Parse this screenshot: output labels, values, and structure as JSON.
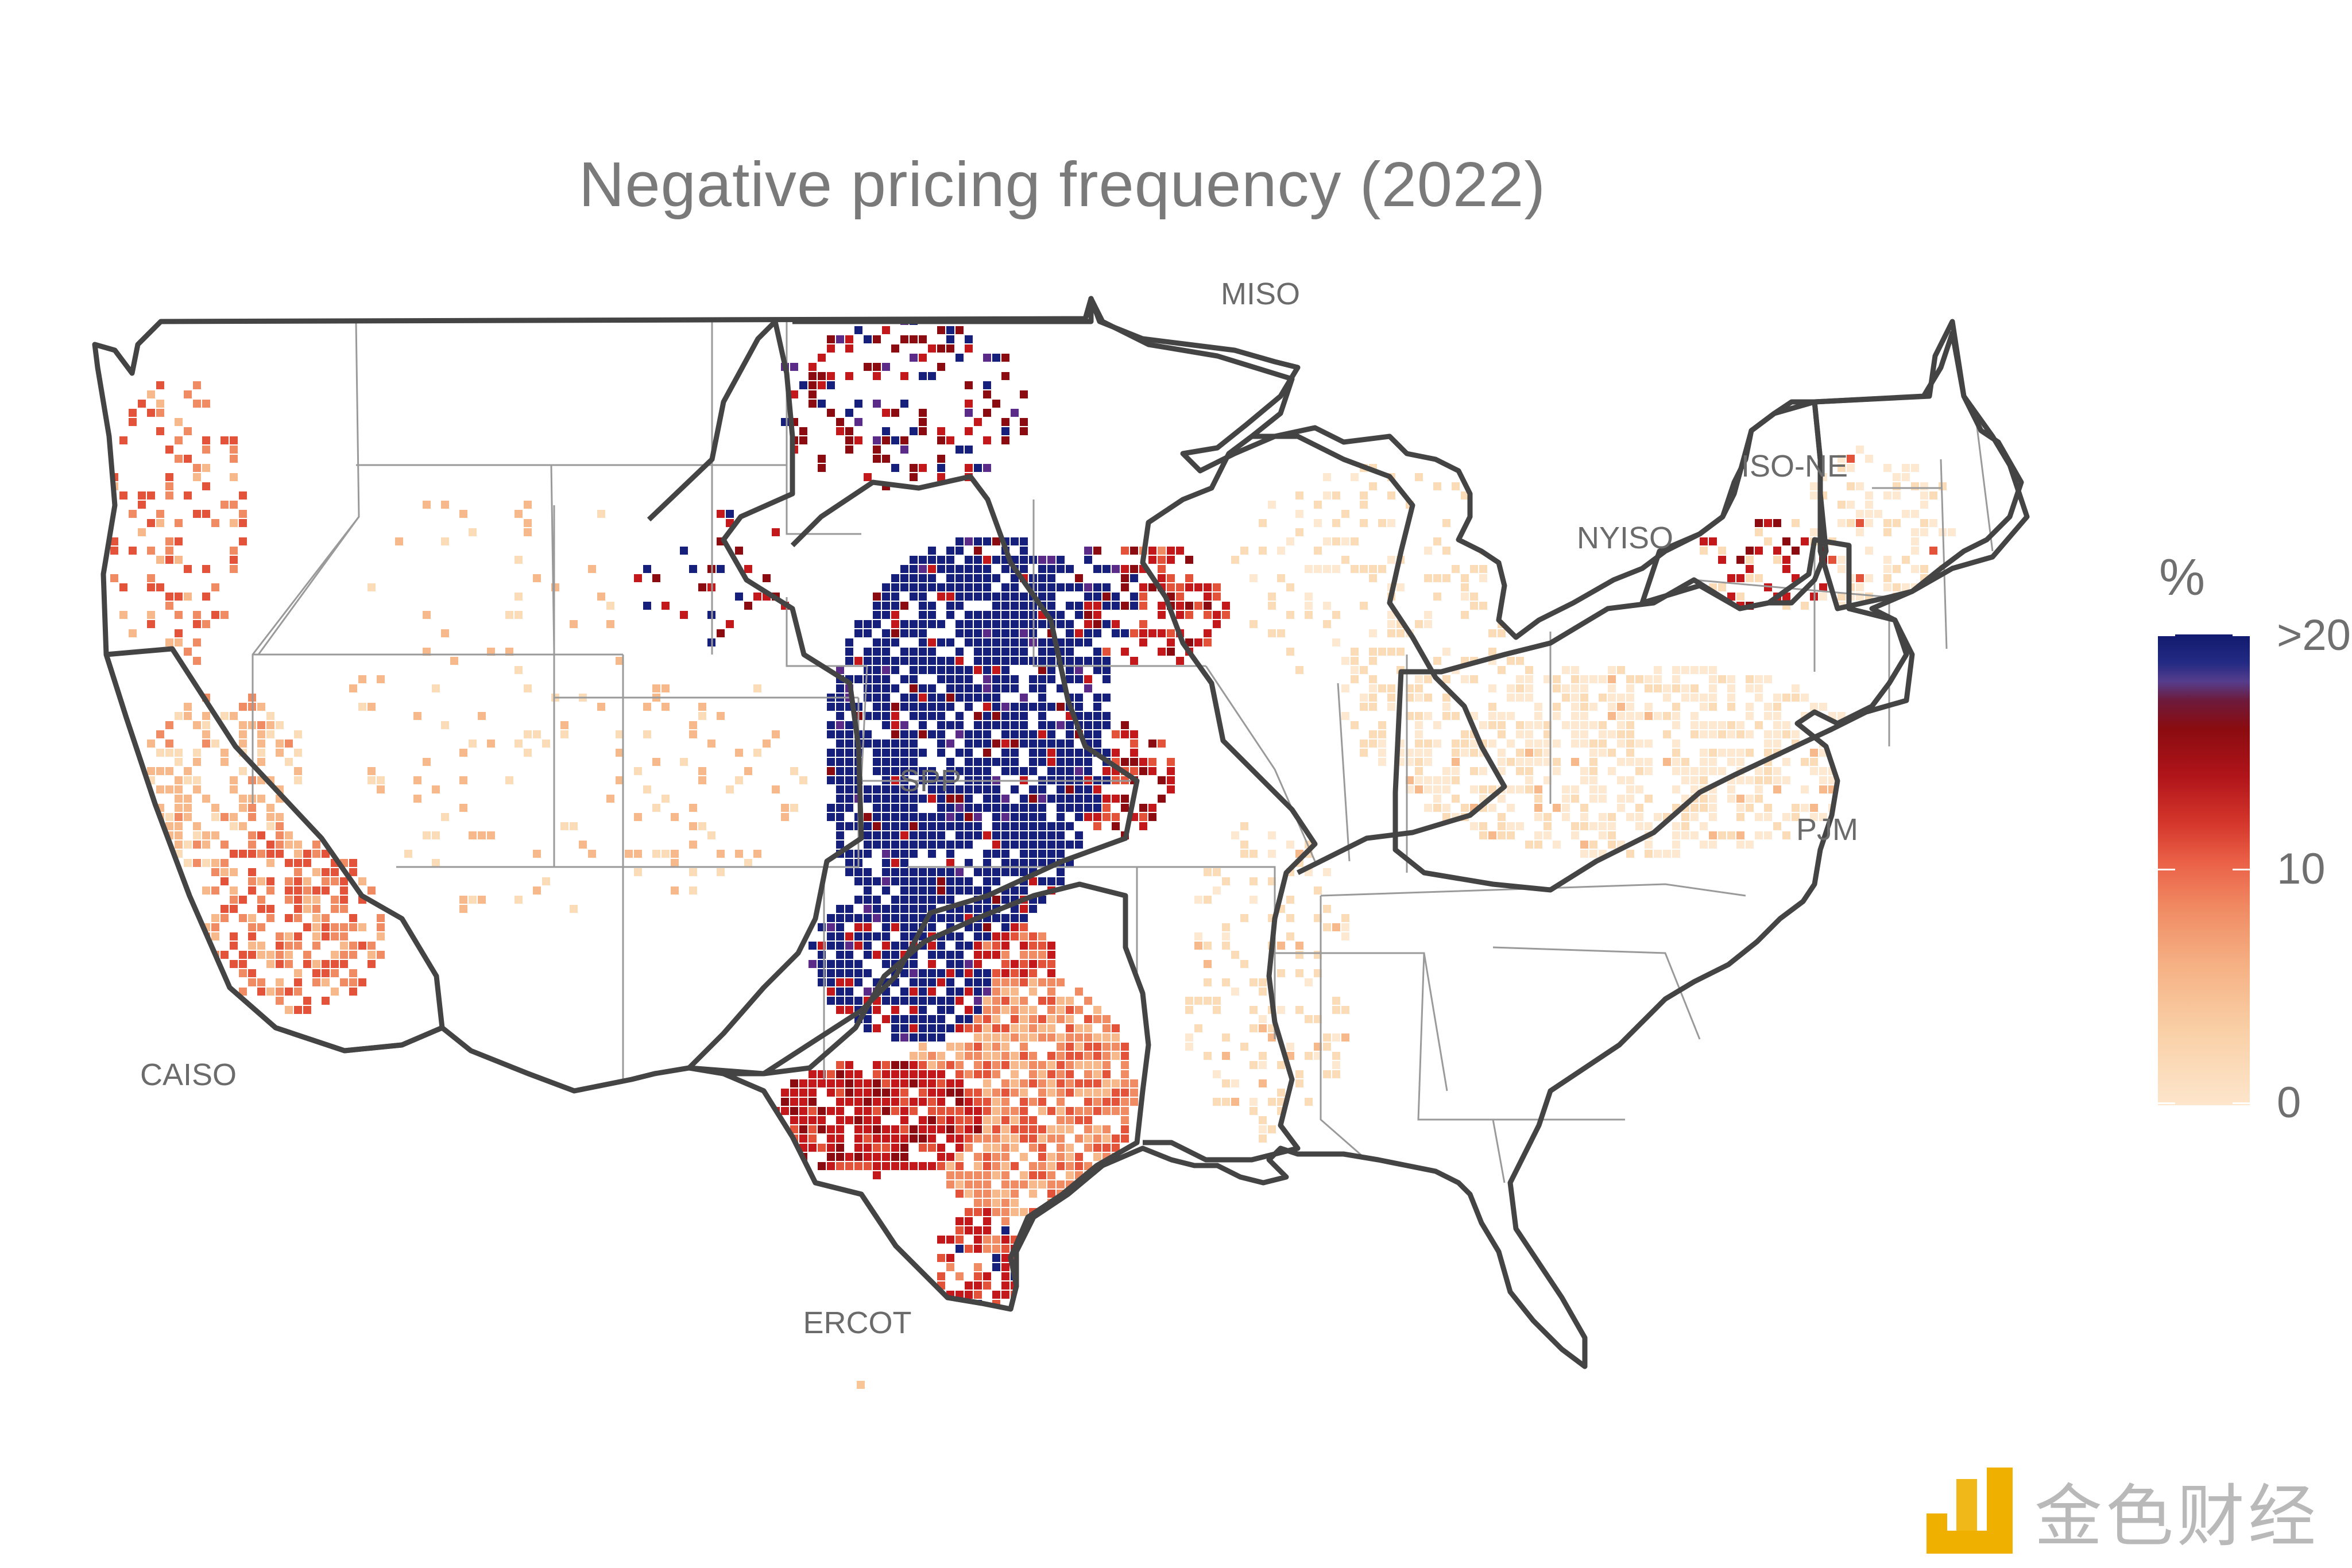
{
  "title": "Negative pricing frequency (2022)",
  "iso_labels": {
    "miso": "MISO",
    "iso_ne": "ISO-NE",
    "nyiso": "NYISO",
    "pjm": "PJM",
    "spp": "SPP",
    "caiso": "CAISO",
    "ercot": "ERCOT"
  },
  "legend": {
    "title": "%",
    "ticks": [
      ">20",
      "10",
      "0"
    ],
    "high_color": "#111a6e",
    "mid_color": "#8a0c10",
    "low_color": "#fde6cc"
  },
  "watermark": {
    "text": "金色财经",
    "logo_color": "#f0b000"
  }
}
